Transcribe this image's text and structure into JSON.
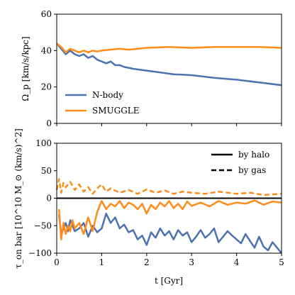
{
  "chart_data": [
    {
      "type": "line",
      "ylabel": "Ω_p [km/s/kpc]",
      "xlabel": "",
      "xlim": [
        0,
        5
      ],
      "ylim": [
        0,
        60
      ],
      "xticks": [
        0,
        1,
        2,
        3,
        4,
        5
      ],
      "yticks": [
        0,
        20,
        40,
        60
      ],
      "xticklabels": [
        "",
        "",
        "",
        "",
        "",
        ""
      ],
      "yticklabels": [
        "0",
        "20",
        "40",
        "60"
      ],
      "legend_position": "lower-left",
      "series": [
        {
          "name": "N-body",
          "color": "#4c72b0",
          "x": [
            0.0,
            0.1,
            0.2,
            0.3,
            0.4,
            0.5,
            0.6,
            0.7,
            0.8,
            0.9,
            1.0,
            1.1,
            1.2,
            1.3,
            1.4,
            1.5,
            1.7,
            2.0,
            2.3,
            2.6,
            3.0,
            3.5,
            4.0,
            4.5,
            5.0
          ],
          "y": [
            44,
            41,
            38,
            40,
            38,
            37,
            38,
            36,
            37,
            35,
            34,
            33,
            34,
            32,
            32,
            31,
            30,
            29,
            28,
            27,
            26.5,
            25,
            24,
            22.5,
            21
          ]
        },
        {
          "name": "SMUGGLE",
          "color": "#ff8c1a",
          "x": [
            0.0,
            0.1,
            0.2,
            0.3,
            0.4,
            0.5,
            0.6,
            0.7,
            0.8,
            0.9,
            1.0,
            1.2,
            1.4,
            1.6,
            1.8,
            2.0,
            2.5,
            3.0,
            3.5,
            4.0,
            4.5,
            5.0
          ],
          "y": [
            44,
            42,
            39,
            41,
            40,
            39,
            40,
            39,
            40,
            39.5,
            40,
            40.5,
            41,
            40.5,
            41,
            41.5,
            42,
            41.5,
            42,
            42,
            42,
            41.5
          ]
        }
      ]
    },
    {
      "type": "line",
      "ylabel": "τ_on bar [10^10 M_⊙ (km/s)^2]",
      "xlabel": "t [Gyr]",
      "xlim": [
        0,
        5
      ],
      "ylim": [
        -100,
        100
      ],
      "xticks": [
        0,
        1,
        2,
        3,
        4,
        5
      ],
      "yticks": [
        -100,
        -50,
        0,
        50,
        100
      ],
      "xticklabels": [
        "0",
        "1",
        "2",
        "3",
        "4",
        "5"
      ],
      "yticklabels": [
        "−100",
        "−50",
        "0",
        "50",
        "100"
      ],
      "legend_position": "upper-right",
      "legend": [
        {
          "label": "by halo",
          "style": "solid"
        },
        {
          "label": "by gas",
          "style": "dashed"
        }
      ],
      "zero_line": true,
      "series": [
        {
          "name": "N-body by halo",
          "color": "#4c72b0",
          "style": "solid",
          "x": [
            0.05,
            0.1,
            0.15,
            0.2,
            0.25,
            0.3,
            0.35,
            0.4,
            0.5,
            0.6,
            0.7,
            0.8,
            0.9,
            1.0,
            1.1,
            1.2,
            1.3,
            1.4,
            1.5,
            1.6,
            1.7,
            1.8,
            1.9,
            2.0,
            2.1,
            2.2,
            2.3,
            2.4,
            2.5,
            2.6,
            2.7,
            2.8,
            2.9,
            3.0,
            3.1,
            3.2,
            3.3,
            3.4,
            3.5,
            3.6,
            3.7,
            3.8,
            3.9,
            4.0,
            4.1,
            4.2,
            4.3,
            4.4,
            4.5,
            4.6,
            4.7,
            4.8,
            4.9,
            5.0
          ],
          "y": [
            -30,
            -65,
            -55,
            -45,
            -60,
            -40,
            -50,
            -60,
            -55,
            -45,
            -70,
            -50,
            -62,
            -55,
            -28,
            -45,
            -35,
            -55,
            -48,
            -62,
            -58,
            -75,
            -68,
            -85,
            -62,
            -72,
            -55,
            -68,
            -60,
            -75,
            -58,
            -68,
            -62,
            -80,
            -70,
            -58,
            -72,
            -65,
            -55,
            -80,
            -70,
            -60,
            -68,
            -75,
            -82,
            -65,
            -78,
            -90,
            -70,
            -88,
            -95,
            -80,
            -90,
            -100
          ]
        },
        {
          "name": "SMUGGLE by halo",
          "color": "#ff8c1a",
          "style": "solid",
          "x": [
            0.05,
            0.1,
            0.15,
            0.2,
            0.25,
            0.3,
            0.35,
            0.4,
            0.5,
            0.6,
            0.7,
            0.8,
            0.9,
            1.0,
            1.1,
            1.2,
            1.3,
            1.4,
            1.5,
            1.6,
            1.7,
            1.8,
            1.9,
            2.0,
            2.1,
            2.2,
            2.3,
            2.4,
            2.5,
            2.6,
            2.7,
            2.8,
            2.9,
            3.0,
            3.2,
            3.4,
            3.6,
            3.8,
            4.0,
            4.2,
            4.4,
            4.6,
            4.8,
            5.0
          ],
          "y": [
            -20,
            -75,
            -45,
            -65,
            -50,
            -60,
            -40,
            -55,
            -45,
            -65,
            -35,
            -60,
            -25,
            -5,
            -20,
            -10,
            -15,
            -5,
            -18,
            -8,
            -12,
            -20,
            -10,
            -28,
            -12,
            -20,
            -8,
            -15,
            -5,
            -18,
            -10,
            -20,
            -6,
            -14,
            -8,
            -15,
            -5,
            -12,
            -8,
            -10,
            -4,
            -12,
            -6,
            -8
          ]
        },
        {
          "name": "SMUGGLE by gas",
          "color": "#ff8c1a",
          "style": "dashed",
          "x": [
            0.0,
            0.05,
            0.1,
            0.15,
            0.2,
            0.3,
            0.4,
            0.5,
            0.6,
            0.7,
            0.8,
            0.9,
            1.0,
            1.1,
            1.2,
            1.4,
            1.6,
            1.8,
            2.0,
            2.2,
            2.4,
            2.6,
            2.8,
            3.0,
            3.3,
            3.6,
            4.0,
            4.3,
            4.6,
            5.0
          ],
          "y": [
            15,
            35,
            10,
            28,
            20,
            30,
            15,
            25,
            12,
            20,
            8,
            18,
            25,
            12,
            18,
            10,
            15,
            8,
            16,
            10,
            14,
            8,
            12,
            10,
            8,
            12,
            8,
            10,
            6,
            8
          ]
        }
      ]
    }
  ]
}
